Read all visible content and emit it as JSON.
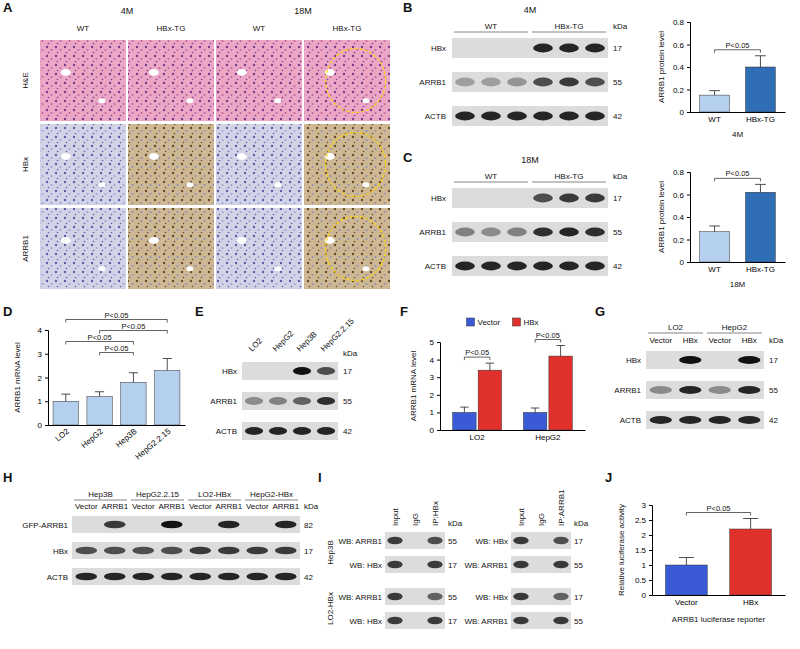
{
  "letters": [
    "A",
    "B",
    "C",
    "D",
    "E",
    "F",
    "G",
    "H",
    "I",
    "J"
  ],
  "histology": {
    "groups": [
      "4M",
      "18M"
    ],
    "columns": [
      "WT",
      "HBx-TG",
      "WT",
      "HBx-TG"
    ],
    "rows": [
      "H&E",
      "HBx",
      "ARRB1"
    ]
  },
  "blots": [
    {
      "header": "4M",
      "groups": [
        "WT",
        "HBx-TG"
      ],
      "kda_label": "kDa",
      "rows": [
        {
          "label": "HBx",
          "kda": 17,
          "signal": [
            0,
            0,
            0,
            0.9,
            0.9,
            0.9
          ]
        },
        {
          "label": "ARRB1",
          "kda": 55,
          "signal": [
            0.3,
            0.3,
            0.35,
            0.7,
            0.8,
            0.7
          ]
        },
        {
          "label": "ACTB",
          "kda": 42,
          "signal": [
            0.9,
            0.9,
            0.9,
            0.9,
            0.9,
            0.9
          ]
        }
      ]
    },
    {
      "header": "18M",
      "groups": [
        "WT",
        "HBx-TG"
      ],
      "kda_label": "kDa",
      "rows": [
        {
          "label": "HBx",
          "kda": 17,
          "signal": [
            0,
            0,
            0,
            0.7,
            0.8,
            0.8
          ]
        },
        {
          "label": "ARRB1",
          "kda": 55,
          "signal": [
            0.45,
            0.4,
            0.45,
            0.85,
            0.9,
            0.85
          ]
        },
        {
          "label": "ACTB",
          "kda": 42,
          "signal": [
            0.9,
            0.9,
            0.9,
            0.9,
            0.9,
            0.9
          ]
        }
      ]
    },
    {
      "lanes": [
        "LO2",
        "HepG2",
        "Hep3B",
        "HepG2.2.15"
      ],
      "kda_label": "kDa",
      "rows": [
        {
          "label": "HBx",
          "kda": 17,
          "signal": [
            0,
            0,
            1,
            0.7
          ]
        },
        {
          "label": "ARRB1",
          "kda": 55,
          "signal": [
            0.4,
            0.45,
            0.6,
            0.85
          ]
        },
        {
          "label": "ACTB",
          "kda": 42,
          "signal": [
            0.9,
            0.9,
            0.9,
            0.9
          ]
        }
      ]
    },
    {
      "groups": [
        "LO2",
        "HepG2"
      ],
      "lanes": [
        "Vector",
        "HBx",
        "Vector",
        "HBx"
      ],
      "kda_label": "kDa",
      "rows": [
        {
          "label": "HBx",
          "kda": 17,
          "signal": [
            0,
            1,
            0,
            1
          ]
        },
        {
          "label": "ARRB1",
          "kda": 55,
          "signal": [
            0.4,
            0.9,
            0.4,
            0.9
          ]
        },
        {
          "label": "ACTB",
          "kda": 42,
          "signal": [
            0.9,
            0.9,
            0.9,
            0.9
          ]
        }
      ]
    },
    {
      "groups": [
        "Hep3B",
        "HepG2.2.15",
        "LO2-HBx",
        "HepG2-HBx"
      ],
      "lanes": [
        "Vector",
        "ARRB1",
        "Vector",
        "ARRB1",
        "Vector",
        "ARRB1",
        "Vector",
        "ARRB1"
      ],
      "kda_label": "kDa",
      "rows": [
        {
          "label": "GFP-ARRB1",
          "kda": 82,
          "signal": [
            0,
            0.8,
            0,
            1,
            0,
            0.9,
            0,
            0.9
          ]
        },
        {
          "label": "HBx",
          "kda": 17,
          "signal": [
            0.7,
            0.7,
            0.7,
            0.7,
            0.8,
            0.8,
            0.8,
            0.8
          ]
        },
        {
          "label": "ACTB",
          "kda": 42,
          "signal": [
            0.9,
            0.9,
            0.9,
            0.9,
            0.9,
            0.9,
            0.9,
            0.9
          ]
        }
      ]
    }
  ],
  "coip": {
    "lanes": [
      [
        "Input",
        "IgG",
        "IP:HBx"
      ],
      [
        "Input",
        "IgG",
        "IP:ARRB1"
      ]
    ],
    "kda_label": "kDa",
    "cell_lines": [
      {
        "label": "Hep3B",
        "blocks": [
          [
            {
              "label": "WB: ARRB1",
              "kda": 55,
              "signal": [
                0.8,
                0,
                0.7
              ]
            },
            {
              "label": "WB: HBx",
              "kda": 17,
              "signal": [
                0.8,
                0,
                0.8
              ]
            }
          ],
          [
            {
              "label": "WB: HBx",
              "kda": 17,
              "signal": [
                0.8,
                0,
                0.7
              ]
            },
            {
              "label": "WB: ARRB1",
              "kda": 55,
              "signal": [
                0.8,
                0,
                0.8
              ]
            }
          ]
        ]
      },
      {
        "label": "LO2-HBx",
        "blocks": [
          [
            {
              "label": "WB: ARRB1",
              "kda": 55,
              "signal": [
                0.8,
                0,
                0.6
              ]
            },
            {
              "label": "WB: HBx",
              "kda": 17,
              "signal": [
                0.8,
                0,
                0.8
              ]
            }
          ],
          [
            {
              "label": "WB: HBx",
              "kda": 17,
              "signal": [
                0.8,
                0,
                0.6
              ]
            },
            {
              "label": "WB: ARRB1",
              "kda": 55,
              "signal": [
                0.8,
                0,
                0.8
              ]
            }
          ]
        ]
      }
    ]
  },
  "chart_data": [
    {
      "type": "bar",
      "y_label": "ARRB1 protein level",
      "x_label": "4M",
      "categories": [
        "WT",
        "HBx-TG"
      ],
      "values": [
        0.15,
        0.4
      ],
      "errors": [
        0.04,
        0.1
      ],
      "colors": [
        "#b4d0ee",
        "#2f6db5"
      ],
      "ylim": [
        0,
        0.8
      ],
      "yticks": [
        0,
        0.2,
        0.4,
        0.6,
        0.8
      ],
      "annotations": [
        {
          "text": "P<0.05",
          "from": "WT",
          "to": "HBx-TG"
        }
      ]
    },
    {
      "type": "bar",
      "y_label": "ARRB1 protein level",
      "x_label": "18M",
      "categories": [
        "WT",
        "HBx-TG"
      ],
      "values": [
        0.27,
        0.62
      ],
      "errors": [
        0.05,
        0.07
      ],
      "colors": [
        "#b4d0ee",
        "#2f6db5"
      ],
      "ylim": [
        0,
        0.8
      ],
      "yticks": [
        0,
        0.2,
        0.4,
        0.6,
        0.8
      ],
      "annotations": [
        {
          "text": "P<0.05",
          "from": "WT",
          "to": "HBx-TG"
        }
      ]
    },
    {
      "type": "bar",
      "y_label": "ARRB1 mRNA level",
      "categories": [
        "LO2",
        "HepG2",
        "Hep3B",
        "HepG2.2.15"
      ],
      "values": [
        1.0,
        1.2,
        1.8,
        2.3
      ],
      "errors": [
        0.3,
        0.2,
        0.4,
        0.5
      ],
      "color": "#b4d0ee",
      "ylim": [
        0,
        4
      ],
      "yticks": [
        0,
        1,
        2,
        3,
        4
      ],
      "annotations": [
        {
          "text": "P<0.05",
          "from": "HepG2",
          "to": "Hep3B"
        },
        {
          "text": "P<0.05",
          "from": "LO2",
          "to": "Hep3B"
        },
        {
          "text": "P<0.05",
          "from": "HepG2",
          "to": "HepG2.2.15"
        },
        {
          "text": "P<0.05",
          "from": "LO2",
          "to": "HepG2.2.15"
        }
      ]
    },
    {
      "type": "bar",
      "y_label": "ARRB1 mRNA level",
      "categories": [
        "LO2",
        "HepG2"
      ],
      "series": [
        {
          "name": "Vector",
          "color": "#3b5bd6",
          "values": [
            1.0,
            1.0
          ],
          "errors": [
            0.3,
            0.25
          ]
        },
        {
          "name": "HBx",
          "color": "#e0302b",
          "values": [
            3.4,
            4.2
          ],
          "errors": [
            0.4,
            0.6
          ]
        }
      ],
      "legend": "top",
      "ylim": [
        0,
        5
      ],
      "yticks": [
        0,
        1,
        2,
        3,
        4,
        5
      ],
      "annotations": [
        {
          "text": "P<0.05",
          "category": "LO2"
        },
        {
          "text": "P<0.05",
          "category": "HepG2"
        }
      ]
    },
    {
      "type": "bar",
      "y_label": "Relative luciferase activity",
      "x_label": "ARRB1 luciferase reporter",
      "categories": [
        "Vector",
        "HBx"
      ],
      "values": [
        1.0,
        2.2
      ],
      "errors": [
        0.25,
        0.35
      ],
      "colors": [
        "#3b5bd6",
        "#e0302b"
      ],
      "ylim": [
        0,
        3
      ],
      "yticks": [
        0,
        0.5,
        1,
        1.5,
        2,
        2.5,
        3
      ],
      "annotations": [
        {
          "text": "P<0.05",
          "from": "Vector",
          "to": "HBx"
        }
      ]
    }
  ]
}
